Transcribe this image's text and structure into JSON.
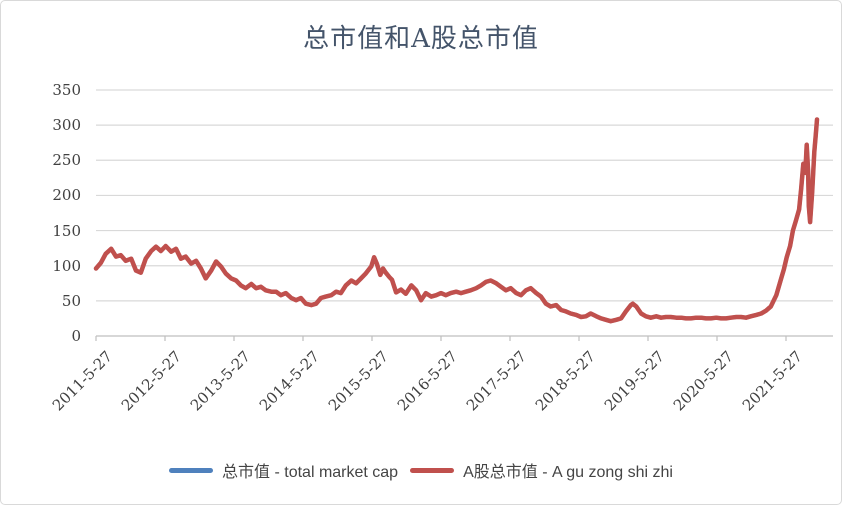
{
  "window": {
    "background": "#FFFFFF",
    "border_color": "#D9D9D9"
  },
  "chart_data": {
    "type": "line",
    "title": "总市值和A股总市值",
    "title_color": "#44546A",
    "tick_text_color": "#404040",
    "legend_text_color": "#444444",
    "gridline_color": "#D9D9D9",
    "axis_line_color": "#BFBFBF",
    "grid": "horizontal",
    "legend_position": "bottom",
    "x_axis": {
      "tick_labels": [
        "2011-5-27",
        "2012-5-27",
        "2013-5-27",
        "2014-5-27",
        "2015-5-27",
        "2016-5-27",
        "2017-5-27",
        "2018-5-27",
        "2019-5-27",
        "2020-5-27",
        "2021-5-27"
      ],
      "tick_interval": "1 year",
      "label_rotation_deg": 45
    },
    "y_axis": {
      "min": 0,
      "max": 350,
      "step": 50
    },
    "x_years_since_first_tick": [
      0,
      0.07,
      0.14,
      0.22,
      0.29,
      0.36,
      0.43,
      0.51,
      0.58,
      0.65,
      0.72,
      0.8,
      0.87,
      0.94,
      1.01,
      1.09,
      1.16,
      1.23,
      1.3,
      1.38,
      1.45,
      1.52,
      1.59,
      1.67,
      1.74,
      1.81,
      1.88,
      1.96,
      2.03,
      2.1,
      2.17,
      2.25,
      2.32,
      2.39,
      2.46,
      2.54,
      2.61,
      2.68,
      2.75,
      2.83,
      2.9,
      2.97,
      3.04,
      3.12,
      3.19,
      3.26,
      3.33,
      3.41,
      3.48,
      3.55,
      3.62,
      3.7,
      3.77,
      3.84,
      3.91,
      3.99,
      4.03,
      4.07,
      4.12,
      4.16,
      4.2,
      4.25,
      4.29,
      4.35,
      4.42,
      4.49,
      4.57,
      4.64,
      4.71,
      4.78,
      4.86,
      4.93,
      5.0,
      5.07,
      5.14,
      5.22,
      5.29,
      5.36,
      5.43,
      5.51,
      5.58,
      5.65,
      5.72,
      5.8,
      5.87,
      5.94,
      6.01,
      6.09,
      6.16,
      6.23,
      6.3,
      6.38,
      6.45,
      6.52,
      6.59,
      6.67,
      6.74,
      6.81,
      6.88,
      6.96,
      7.03,
      7.1,
      7.17,
      7.25,
      7.32,
      7.39,
      7.46,
      7.54,
      7.61,
      7.68,
      7.75,
      7.78,
      7.83,
      7.9,
      7.97,
      8.04,
      8.12,
      8.19,
      8.26,
      8.33,
      8.41,
      8.48,
      8.55,
      8.62,
      8.7,
      8.77,
      8.84,
      8.91,
      8.99,
      9.06,
      9.13,
      9.2,
      9.28,
      9.35,
      9.42,
      9.49,
      9.57,
      9.64,
      9.71,
      9.78,
      9.86,
      9.93,
      9.97,
      10.01,
      10.06,
      10.1,
      10.14,
      10.19,
      10.22,
      10.25,
      10.28,
      10.3,
      10.32,
      10.33,
      10.35,
      10.38,
      10.41,
      10.43,
      10.45
    ],
    "series": [
      {
        "name": "总市值 - total market cap",
        "color": "#4F81BD",
        "values": "identical to A股总市值 series (completely hidden behind the red line)"
      },
      {
        "name": "A股总市值 - A gu zong shi zhi",
        "color": "#C0504D",
        "values": [
          96,
          104,
          117,
          124,
          113,
          115,
          107,
          110,
          93,
          90,
          110,
          121,
          127,
          121,
          128,
          120,
          124,
          110,
          113,
          103,
          107,
          96,
          82,
          93,
          106,
          99,
          89,
          82,
          79,
          72,
          68,
          74,
          68,
          70,
          65,
          63,
          63,
          58,
          61,
          54,
          51,
          54,
          46,
          44,
          46,
          54,
          56,
          58,
          63,
          61,
          72,
          79,
          75,
          82,
          89,
          99,
          112,
          103,
          87,
          96,
          90,
          84,
          80,
          62,
          66,
          60,
          72,
          65,
          51,
          61,
          56,
          58,
          61,
          58,
          61,
          63,
          61,
          63,
          65,
          68,
          72,
          77,
          79,
          75,
          70,
          65,
          68,
          61,
          58,
          65,
          68,
          61,
          56,
          46,
          42,
          44,
          37,
          35,
          32,
          30,
          27,
          28,
          32,
          28,
          25,
          23,
          21,
          23,
          25,
          35,
          44,
          46,
          42,
          32,
          28,
          26,
          28,
          26,
          27,
          27,
          26,
          26,
          25,
          25,
          26,
          26,
          25,
          25,
          26,
          25,
          25,
          26,
          27,
          27,
          26,
          28,
          30,
          32,
          36,
          42,
          58,
          82,
          95,
          112,
          128,
          150,
          163,
          180,
          210,
          245,
          232,
          272,
          235,
          185,
          162,
          205,
          262,
          285,
          308
        ]
      }
    ]
  }
}
